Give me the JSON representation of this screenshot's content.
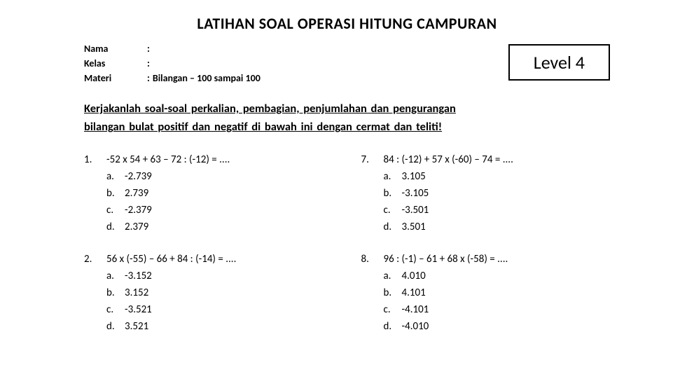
{
  "title": "LATIHAN SOAL OPERASI HITUNG CAMPURAN",
  "meta": {
    "nama_label": "Nama",
    "nama_value": "",
    "kelas_label": "Kelas",
    "kelas_value": "",
    "materi_label": "Materi",
    "materi_value": "Bilangan – 100 sampai 100"
  },
  "level": "Level 4",
  "instructions": "Kerjakanlah soal-soal perkalian, pembagian, penjumlahan dan pengurangan bilangang bulat positif dan negatif di bawah ini dengan cermat dan teliti!",
  "instructions_line1": "Kerjakanlah  soal-soal  perkalian,  pembagian,  penjumlahan  dan  pengurangan",
  "instructions_line2": "bilangan bulat positif dan negatif di bawah ini dengan cermat dan teliti!",
  "left": [
    {
      "num": "1.",
      "text": "-52 x 54 + 63 – 72 : (-12) = ....",
      "opts": [
        {
          "l": "a.",
          "v": "-2.739"
        },
        {
          "l": "b.",
          "v": "2.739"
        },
        {
          "l": "c.",
          "v": "-2.379"
        },
        {
          "l": "d.",
          "v": "2.379"
        }
      ]
    },
    {
      "num": "2.",
      "text": "56 x (-55) – 66 + 84 : (-14) = ....",
      "opts": [
        {
          "l": "a.",
          "v": "-3.152"
        },
        {
          "l": "b.",
          "v": "3.152"
        },
        {
          "l": "c.",
          "v": "-3.521"
        },
        {
          "l": "d.",
          "v": "3.521"
        }
      ]
    }
  ],
  "right": [
    {
      "num": "7.",
      "text": "84 : (-12) + 57 x (-60) – 74 = ....",
      "opts": [
        {
          "l": "a.",
          "v": "3.105"
        },
        {
          "l": "b.",
          "v": "-3.105"
        },
        {
          "l": "c.",
          "v": "-3.501"
        },
        {
          "l": "d.",
          "v": "3.501"
        }
      ]
    },
    {
      "num": "8.",
      "text": "96 : (-1) – 61 + 68 x (-58) = ....",
      "opts": [
        {
          "l": "a.",
          "v": "4.010"
        },
        {
          "l": "b.",
          "v": "4.101"
        },
        {
          "l": "c.",
          "v": "-4.101"
        },
        {
          "l": "d.",
          "v": "-4.010"
        }
      ]
    }
  ],
  "style": {
    "title_fontsize": 22,
    "body_fontsize": 15,
    "instruction_fontsize": 16.5,
    "level_fontsize": 26,
    "colors": {
      "text": "#000000",
      "background": "#ffffff",
      "border": "#000000"
    },
    "font_family": "Calibri"
  }
}
